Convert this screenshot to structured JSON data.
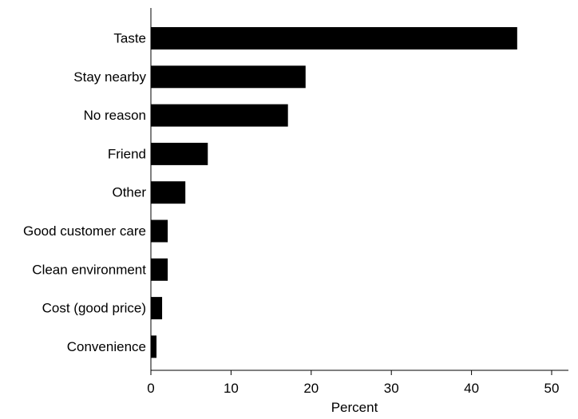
{
  "chart_data": {
    "type": "bar",
    "orientation": "horizontal",
    "title": "",
    "xlabel": "Percent",
    "ylabel": "",
    "xlim": [
      0,
      52
    ],
    "xticks": [
      0,
      10,
      20,
      30,
      40,
      50
    ],
    "grid": false,
    "categories": [
      "Taste",
      "Stay nearby",
      "No reason",
      "Friend",
      "Other",
      "Good customer care",
      "Clean environment",
      "Cost (good price)",
      "Convenience"
    ],
    "values": [
      45.7,
      19.3,
      17.1,
      7.1,
      4.3,
      2.1,
      2.1,
      1.4,
      0.7
    ],
    "bar_color": "#000000"
  }
}
